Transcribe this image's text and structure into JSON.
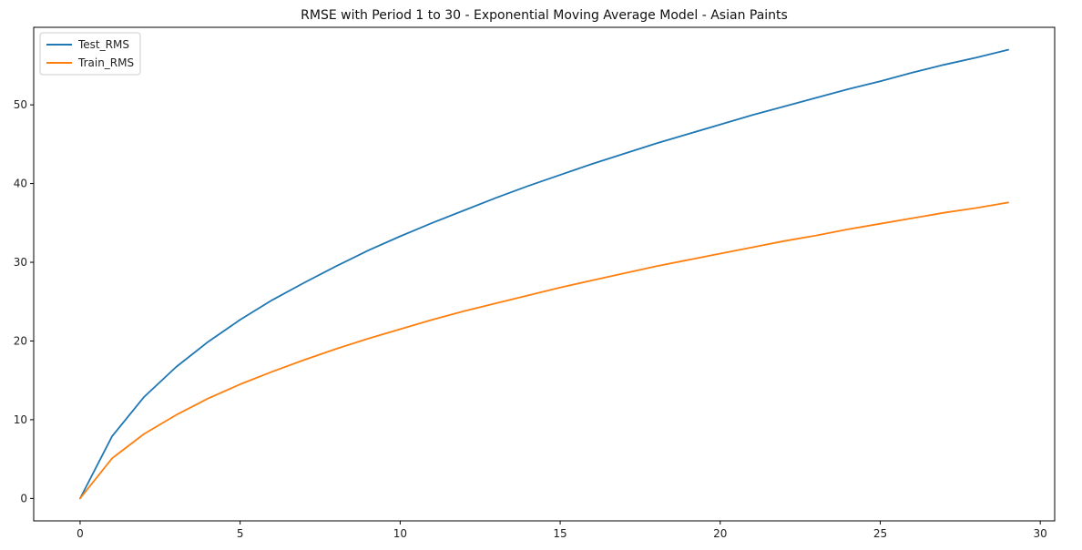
{
  "chart_data": {
    "type": "line",
    "title": "RMSE with Period 1 to 30 - Exponential Moving Average Model - Asian Paints",
    "xlabel": "",
    "ylabel": "",
    "xlim": [
      -1.45,
      30.45
    ],
    "ylim": [
      -2.85,
      59.85
    ],
    "x_ticks": [
      0,
      5,
      10,
      15,
      20,
      25,
      30
    ],
    "y_ticks": [
      0,
      10,
      20,
      30,
      40,
      50
    ],
    "grid": false,
    "legend_position": "top-left",
    "x": [
      0,
      1,
      2,
      3,
      4,
      5,
      6,
      7,
      8,
      9,
      10,
      11,
      12,
      13,
      14,
      15,
      16,
      17,
      18,
      19,
      20,
      21,
      22,
      23,
      24,
      25,
      26,
      27,
      28,
      29
    ],
    "series": [
      {
        "name": "Test_RMS",
        "color": "#1f77b4",
        "values": [
          0,
          7.9,
          12.9,
          16.7,
          19.9,
          22.7,
          25.2,
          27.4,
          29.5,
          31.5,
          33.3,
          35.0,
          36.6,
          38.2,
          39.7,
          41.1,
          42.5,
          43.8,
          45.1,
          46.3,
          47.5,
          48.7,
          49.8,
          50.9,
          52.0,
          53.0,
          54.1,
          55.1,
          56.0,
          57.0
        ]
      },
      {
        "name": "Train_RMS",
        "color": "#ff7f0e",
        "values": [
          0,
          5.1,
          8.2,
          10.6,
          12.7,
          14.5,
          16.1,
          17.6,
          19.0,
          20.3,
          21.5,
          22.7,
          23.8,
          24.8,
          25.8,
          26.8,
          27.7,
          28.6,
          29.5,
          30.3,
          31.1,
          31.9,
          32.7,
          33.4,
          34.2,
          34.9,
          35.6,
          36.3,
          36.9,
          37.6
        ]
      }
    ]
  }
}
